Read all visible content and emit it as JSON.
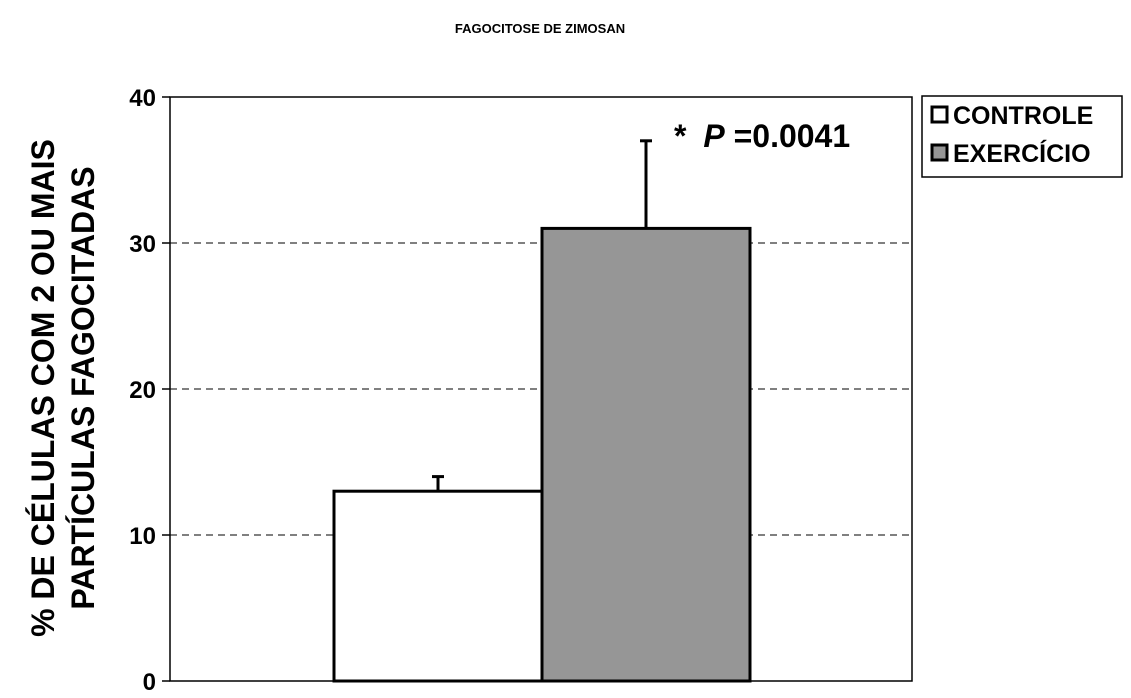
{
  "chart_data": {
    "type": "bar",
    "title": "FAGOCITOSE DE ZIMOSAN",
    "ylabel_lines": [
      "% DE CÉLULAS COM 2 OU MAIS",
      "PARTÍCULAS FAGOCITADAS"
    ],
    "xlabel": "",
    "ylim": [
      0,
      40
    ],
    "yticks": [
      0,
      10,
      20,
      30,
      40
    ],
    "grid": "horizontal-dashed",
    "legend_position": "top-right",
    "series": [
      {
        "name": "CONTROLE",
        "value": 13,
        "error": 1,
        "color": "#ffffff"
      },
      {
        "name": "EXERCÍCIO",
        "value": 31,
        "error": 6,
        "color": "#969696"
      }
    ],
    "annotation": {
      "star": "*",
      "p_label": "P",
      "p_value": "=0.0041"
    }
  }
}
